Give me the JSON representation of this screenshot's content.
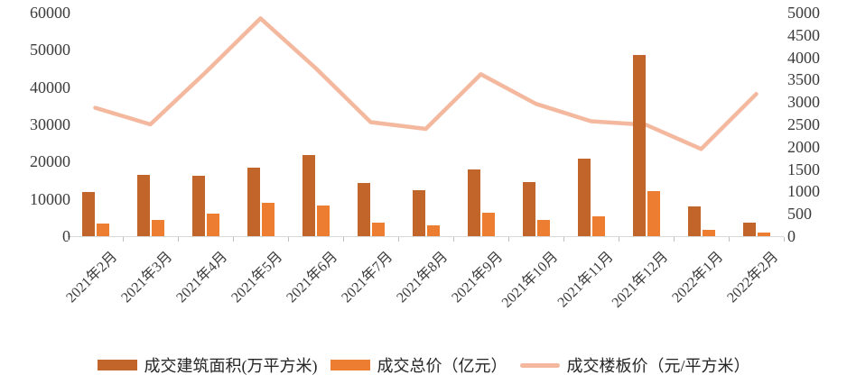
{
  "chart_data": {
    "type": "combo",
    "title": "",
    "grid": false,
    "legend_position": "bottom",
    "categories": [
      "2021年2月",
      "2021年3月",
      "2021年4月",
      "2021年5月",
      "2021年6月",
      "2021年7月",
      "2021年8月",
      "2021年9月",
      "2021年10月",
      "2021年11月",
      "2021年12月",
      "2022年1月",
      "2022年2月"
    ],
    "series": [
      {
        "name": "成交建筑面积(万平方米)",
        "type": "bar",
        "axis": "left",
        "color": "#C2652B",
        "values": [
          11900,
          16500,
          16200,
          18300,
          21800,
          14300,
          12400,
          17900,
          14400,
          20900,
          48700,
          7900,
          3600
        ]
      },
      {
        "name": "成交总价（亿元）",
        "type": "bar",
        "axis": "left",
        "color": "#ED7D31",
        "values": [
          3400,
          4300,
          6100,
          8900,
          8300,
          3700,
          3000,
          6300,
          4400,
          5400,
          12000,
          1650,
          1000
        ]
      },
      {
        "name": "成交楼板价（元/平方米）",
        "type": "line",
        "axis": "right",
        "color": "#F4B89E",
        "values": [
          2870,
          2500,
          3660,
          4870,
          3760,
          2550,
          2400,
          3620,
          2960,
          2570,
          2490,
          1950,
          3180
        ]
      }
    ],
    "left_axis": {
      "min": 0,
      "max": 60000,
      "step": 10000,
      "ticks": [
        "0",
        "10000",
        "20000",
        "30000",
        "40000",
        "50000",
        "60000"
      ]
    },
    "right_axis": {
      "min": 0,
      "max": 5000,
      "step": 500,
      "ticks": [
        "0",
        "500",
        "1000",
        "1500",
        "2000",
        "2500",
        "3000",
        "3500",
        "4000",
        "4500",
        "5000"
      ]
    }
  },
  "styles": {
    "background": "#FFFFFF",
    "axis_text_color": "#3B3B3B",
    "legend_text_color": "#262626",
    "axis_line_color": "#D9D9D9",
    "tick_color": "#BFBFBF"
  }
}
